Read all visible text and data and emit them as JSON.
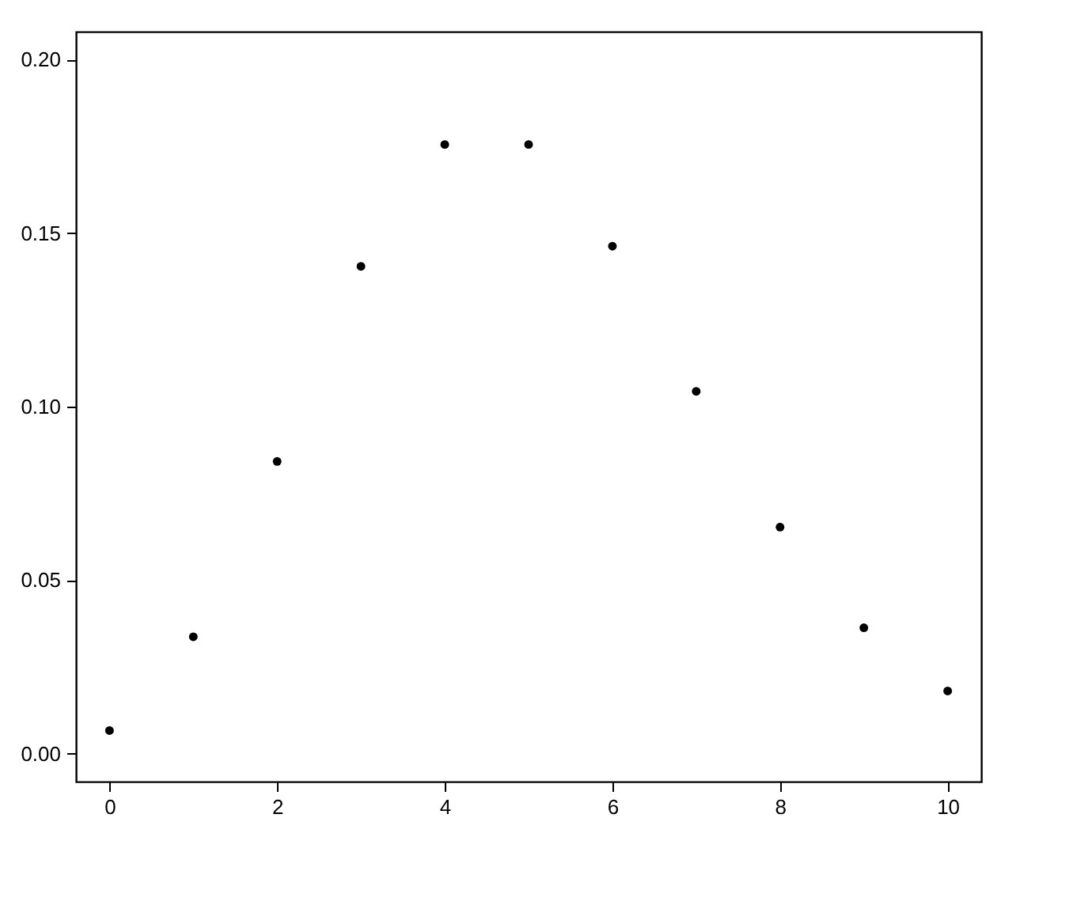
{
  "chart_data": {
    "type": "scatter",
    "x": [
      0,
      1,
      2,
      3,
      4,
      5,
      6,
      7,
      8,
      9,
      10
    ],
    "series": [
      {
        "color": "#000000",
        "values": [
          0.0067,
          0.0337,
          0.0842,
          0.1404,
          0.1755,
          0.1755,
          0.1462,
          0.1044,
          0.0653,
          0.0363,
          0.0181
        ]
      }
    ],
    "xlim": [
      -0.4,
      10.4
    ],
    "xticks": [
      0,
      2,
      4,
      6,
      8,
      10
    ],
    "ylim": [
      -0.008,
      0.208
    ],
    "yticks": [
      {
        "value": 0,
        "label": "0.00"
      },
      {
        "value": 0.05,
        "label": "0.05"
      },
      {
        "value": 0.1,
        "label": "0.10"
      },
      {
        "value": 0.15,
        "label": "0.15"
      },
      {
        "value": 0.2,
        "label": "0.20"
      }
    ],
    "marker": "circle",
    "grid": false,
    "legend": false
  }
}
